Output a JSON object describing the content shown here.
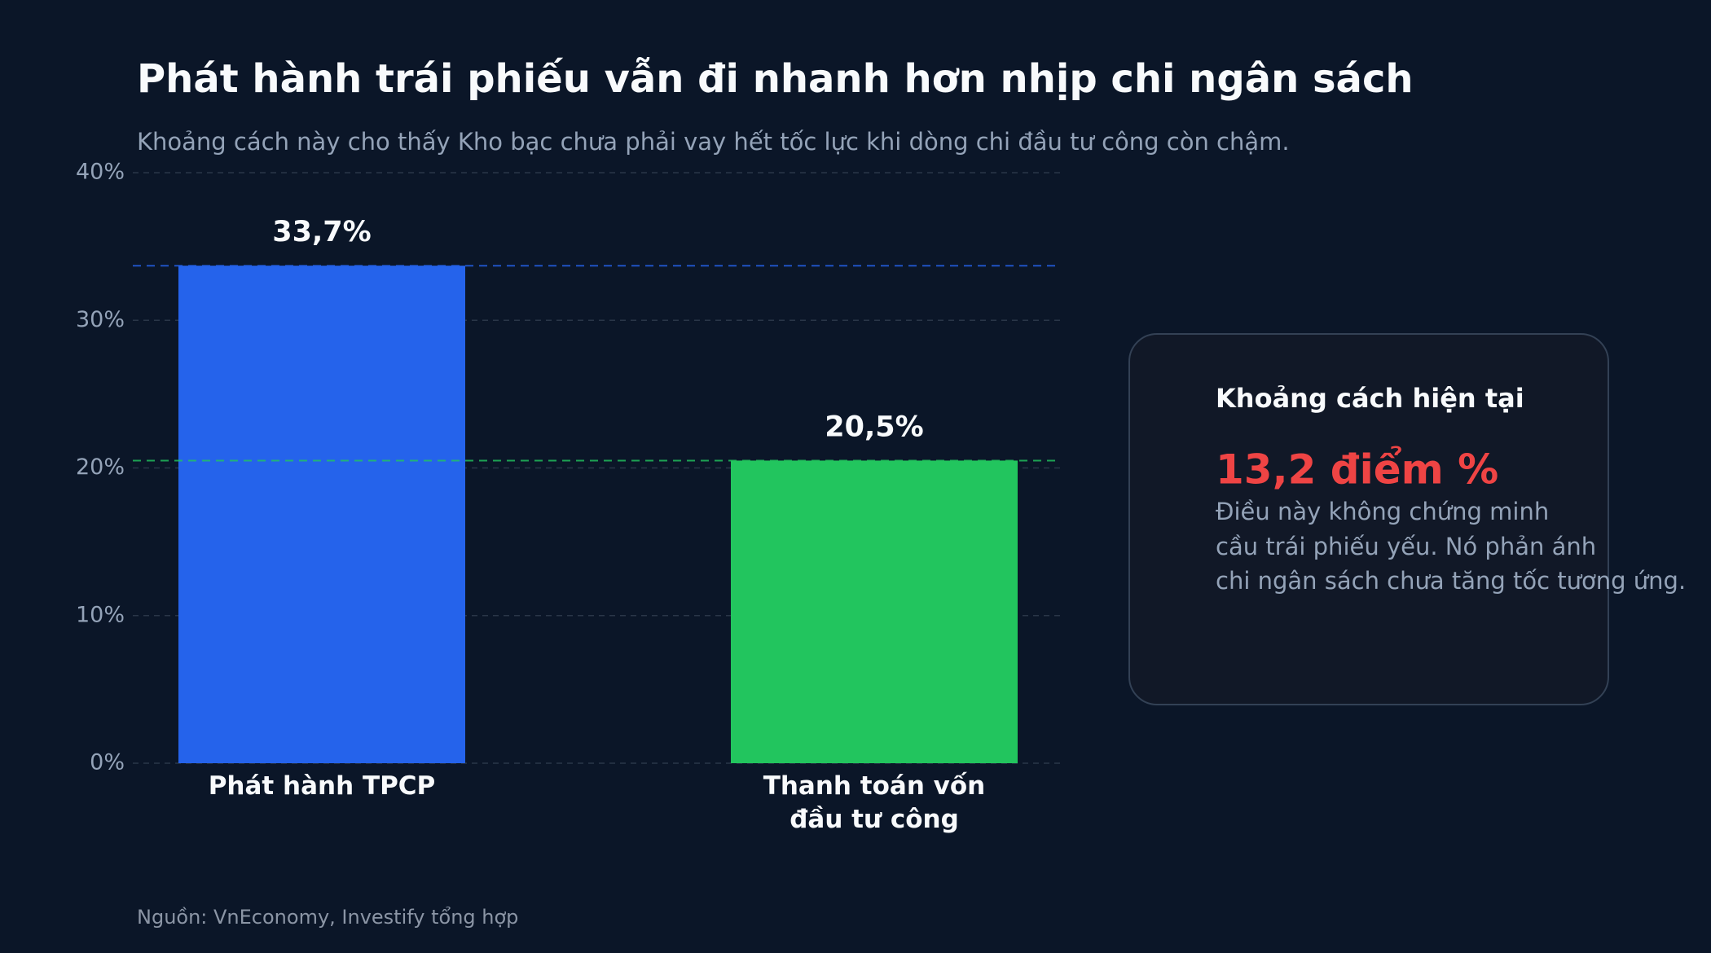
{
  "chart_data": {
    "type": "bar",
    "title": "Phát hành trái phiếu vẫn đi nhanh hơn nhịp chi ngân sách",
    "subtitle": "Khoảng cách này cho thấy Kho bạc chưa phải vay hết tốc lực khi dòng chi đầu tư công còn chậm.",
    "categories": [
      "Phát hành TPCP",
      "Thanh toán vốn đầu tư công"
    ],
    "values": [
      33.7,
      20.5
    ],
    "value_labels": [
      "33,7%",
      "20,5%"
    ],
    "colors": [
      "#2563eb",
      "#22c55e"
    ],
    "ylim": [
      0,
      40
    ],
    "yticks": [
      {
        "value": 0,
        "label": "0%"
      },
      {
        "value": 10,
        "label": "10%"
      },
      {
        "value": 20,
        "label": "20%"
      },
      {
        "value": 30,
        "label": "30%"
      },
      {
        "value": 40,
        "label": "40%"
      }
    ],
    "grid": true,
    "reference_lines": true,
    "annotation": {
      "title": "Khoảng cách hiện tại",
      "highlight": "13,2 điểm %",
      "body_lines": [
        "Điều này không chứng minh",
        "cầu trái phiếu yếu. Nó phản ánh",
        "chi ngân sách chưa tăng tốc tương ứng."
      ]
    },
    "source": "Nguồn: VnEconomy, Investify tổng hợp"
  }
}
